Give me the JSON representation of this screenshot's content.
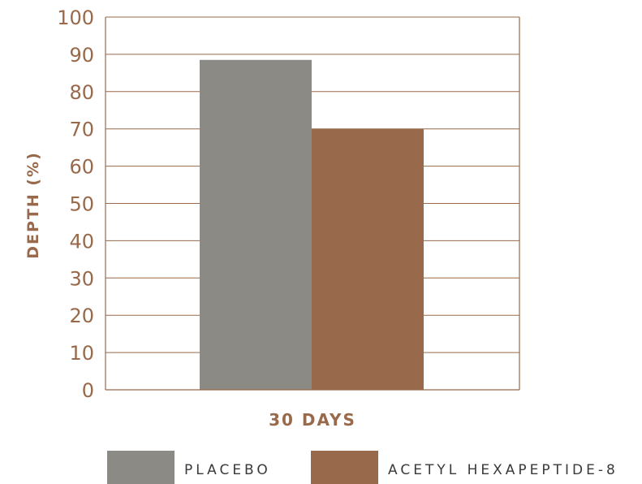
{
  "chart_data": {
    "type": "bar",
    "categories": [
      "30 DAYS"
    ],
    "series": [
      {
        "name": "PLACEBO",
        "values": [
          88.5
        ],
        "color": "#8c8a85"
      },
      {
        "name": "ACETYL HEXAPEPTIDE-8",
        "values": [
          70
        ],
        "color": "#98694a"
      }
    ],
    "title": "",
    "xlabel": "",
    "ylabel": "DEPTH (%)",
    "ylim": [
      0,
      100
    ],
    "yticks": [
      0,
      10,
      20,
      30,
      40,
      50,
      60,
      70,
      80,
      90,
      100
    ],
    "grid": true,
    "legend_position": "bottom"
  },
  "colors": {
    "axis": "#98694a",
    "gridline": "#98694a",
    "tick_text": "#98694a",
    "label_text": "#98694a",
    "legend_text": "#3a3a3a"
  }
}
